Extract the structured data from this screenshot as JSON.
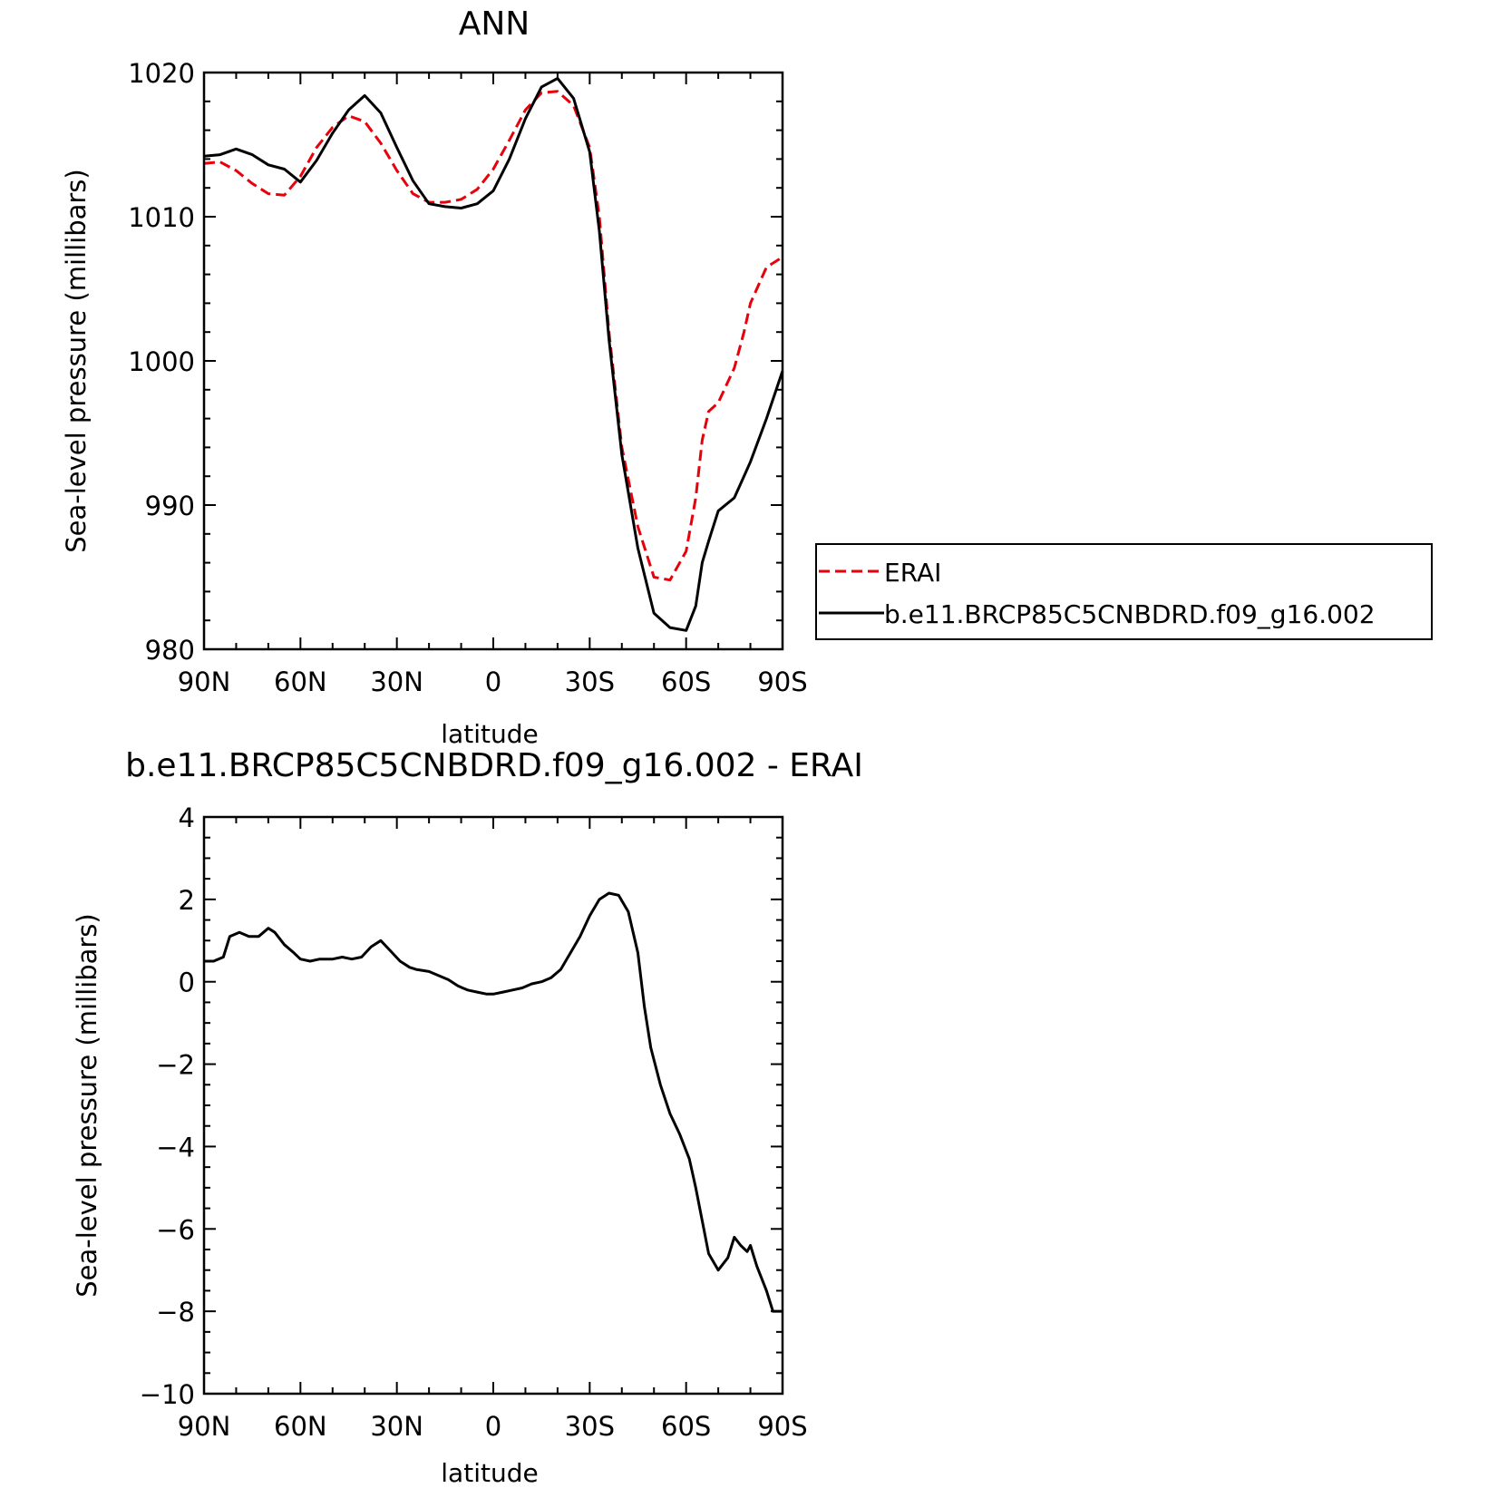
{
  "chart_data": [
    {
      "type": "line",
      "title": "ANN",
      "xlabel": "latitude",
      "ylabel": "Sea-level pressure (millibars)",
      "xlim": [
        90,
        -90
      ],
      "ylim": [
        980,
        1020
      ],
      "x_ticks": [
        90,
        60,
        30,
        0,
        -30,
        -60,
        -90
      ],
      "x_tick_labels": [
        "90N",
        "60N",
        "30N",
        "0",
        "30S",
        "60S",
        "90S"
      ],
      "y_ticks": [
        980,
        990,
        1000,
        1010,
        1020
      ],
      "y_tick_labels": [
        "980",
        "990",
        "1000",
        "1010",
        "1020"
      ],
      "legend_position": "right",
      "series": [
        {
          "name": "ERAI",
          "color": "#e8000b",
          "dash": "dashed",
          "x": [
            90,
            85,
            80,
            75,
            70,
            65,
            60,
            55,
            50,
            45,
            40,
            35,
            30,
            25,
            20,
            15,
            10,
            5,
            0,
            -5,
            -10,
            -15,
            -20,
            -25,
            -30,
            -33,
            -36,
            -40,
            -45,
            -50,
            -55,
            -60,
            -63,
            -65,
            -67,
            -70,
            -75,
            -78,
            -80,
            -85,
            -90
          ],
          "values": [
            1013.7,
            1013.8,
            1013.2,
            1012.3,
            1011.6,
            1011.5,
            1012.8,
            1014.8,
            1016.2,
            1017.0,
            1016.6,
            1015.1,
            1013.2,
            1011.6,
            1011.0,
            1011.0,
            1011.2,
            1011.9,
            1013.3,
            1015.3,
            1017.4,
            1018.6,
            1018.7,
            1017.7,
            1014.8,
            1010.0,
            1002.0,
            994.0,
            988.5,
            985.0,
            984.8,
            986.8,
            990.5,
            994.5,
            996.5,
            997.1,
            999.5,
            1002.0,
            1004.0,
            1006.5,
            1007.2
          ]
        },
        {
          "name": "b.e11.BRCP85C5CNBDRD.f09_g16.002",
          "color": "#000000",
          "dash": "solid",
          "x": [
            90,
            85,
            80,
            75,
            70,
            65,
            60,
            55,
            50,
            45,
            40,
            35,
            30,
            25,
            20,
            15,
            10,
            5,
            0,
            -5,
            -10,
            -15,
            -20,
            -25,
            -30,
            -33,
            -36,
            -40,
            -45,
            -50,
            -55,
            -60,
            -63,
            -65,
            -67,
            -70,
            -75,
            -78,
            -80,
            -85,
            -90
          ],
          "values": [
            1014.2,
            1014.3,
            1014.7,
            1014.3,
            1013.6,
            1013.3,
            1012.4,
            1013.9,
            1015.8,
            1017.4,
            1018.4,
            1017.2,
            1014.8,
            1012.5,
            1010.9,
            1010.7,
            1010.6,
            1010.9,
            1011.8,
            1014.0,
            1016.8,
            1019.0,
            1019.6,
            1018.2,
            1014.5,
            1009.0,
            1001.5,
            993.5,
            987.0,
            982.5,
            981.5,
            981.3,
            983.0,
            986.0,
            987.5,
            989.6,
            990.5,
            992.0,
            993.0,
            996.0,
            999.3
          ]
        }
      ]
    },
    {
      "type": "line",
      "title": "b.e11.BRCP85C5CNBDRD.f09_g16.002 - ERAI",
      "xlabel": "latitude",
      "ylabel": "Sea-level pressure (millibars)",
      "xlim": [
        90,
        -90
      ],
      "ylim": [
        -10,
        4
      ],
      "x_ticks": [
        90,
        60,
        30,
        0,
        -30,
        -60,
        -90
      ],
      "x_tick_labels": [
        "90N",
        "60N",
        "30N",
        "0",
        "30S",
        "60S",
        "90S"
      ],
      "y_ticks": [
        -10,
        -8,
        -6,
        -4,
        -2,
        0,
        2,
        4
      ],
      "y_tick_labels": [
        "−10",
        "−8",
        "−6",
        "−4",
        "−2",
        "0",
        "2",
        "4"
      ],
      "series": [
        {
          "color": "#000000",
          "dash": "solid",
          "x": [
            90,
            87,
            84,
            82,
            79,
            76,
            73,
            70,
            68,
            65,
            62,
            60,
            57,
            54,
            50,
            47,
            44,
            41,
            38,
            35,
            32,
            29,
            26,
            24,
            20,
            17,
            14,
            11,
            8,
            5,
            2,
            0,
            -3,
            -6,
            -9,
            -12,
            -15,
            -18,
            -21,
            -24,
            -27,
            -30,
            -33,
            -36,
            -39,
            -42,
            -45,
            -47,
            -49,
            -52,
            -55,
            -58,
            -61,
            -63,
            -65,
            -67,
            -70,
            -73,
            -75,
            -77,
            -79,
            -80,
            -82,
            -85,
            -87,
            -89,
            -90
          ],
          "values": [
            0.5,
            0.5,
            0.6,
            1.1,
            1.2,
            1.1,
            1.1,
            1.3,
            1.2,
            0.9,
            0.7,
            0.55,
            0.5,
            0.55,
            0.55,
            0.6,
            0.55,
            0.6,
            0.85,
            1.0,
            0.75,
            0.5,
            0.35,
            0.3,
            0.25,
            0.15,
            0.05,
            -0.1,
            -0.2,
            -0.25,
            -0.3,
            -0.3,
            -0.25,
            -0.2,
            -0.15,
            -0.05,
            0.0,
            0.1,
            0.3,
            0.7,
            1.1,
            1.6,
            2.0,
            2.15,
            2.1,
            1.7,
            0.7,
            -0.6,
            -1.6,
            -2.5,
            -3.2,
            -3.7,
            -4.3,
            -5.0,
            -5.8,
            -6.6,
            -7.0,
            -6.7,
            -6.2,
            -6.4,
            -6.55,
            -6.4,
            -6.9,
            -7.5,
            -8.0,
            -8.0,
            -8.0
          ]
        }
      ]
    }
  ]
}
